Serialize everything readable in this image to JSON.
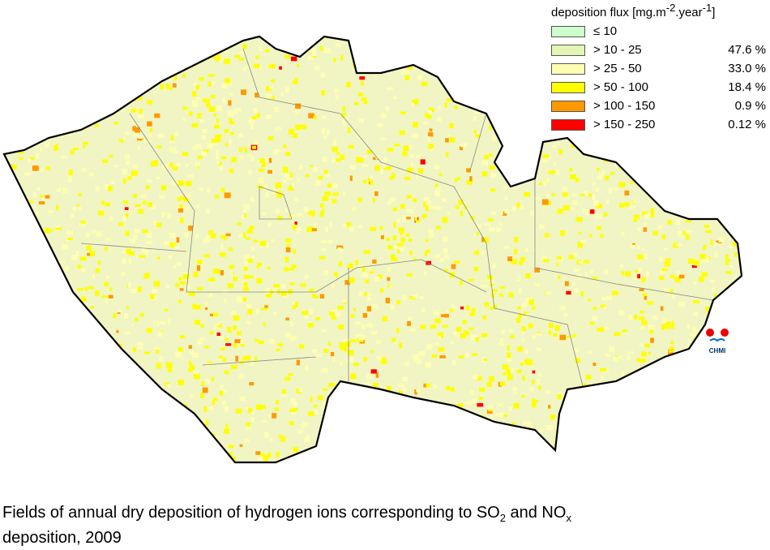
{
  "legend": {
    "title": {
      "text": "deposition flux [mg.m",
      "sup1": "-2",
      "mid": ".year",
      "sup2": "-1",
      "end": "]"
    },
    "items": [
      {
        "label": "≤ 10",
        "color": "#ccffcc",
        "share": null
      },
      {
        "label": "> 10 - 25",
        "color": "#e5f5b3",
        "share": "47.6 %"
      },
      {
        "label": "> 25 - 50",
        "color": "#ffffb3",
        "share": "33.0 %"
      },
      {
        "label": "> 50 - 100",
        "color": "#ffff00",
        "share": "18.4 %"
      },
      {
        "label": "> 100 - 150",
        "color": "#ff9900",
        "share": "0.9 %"
      },
      {
        "label": "> 150 - 250",
        "color": "#ff0000",
        "share": "0.12 %"
      }
    ]
  },
  "logo": "CHMI",
  "caption": {
    "line1": "Fields of annual dry deposition of hydrogen ions corresponding to SO",
    "sub1": "2",
    "mid": " and NO",
    "sub2": "x",
    "line2": "deposition, 2009"
  }
}
